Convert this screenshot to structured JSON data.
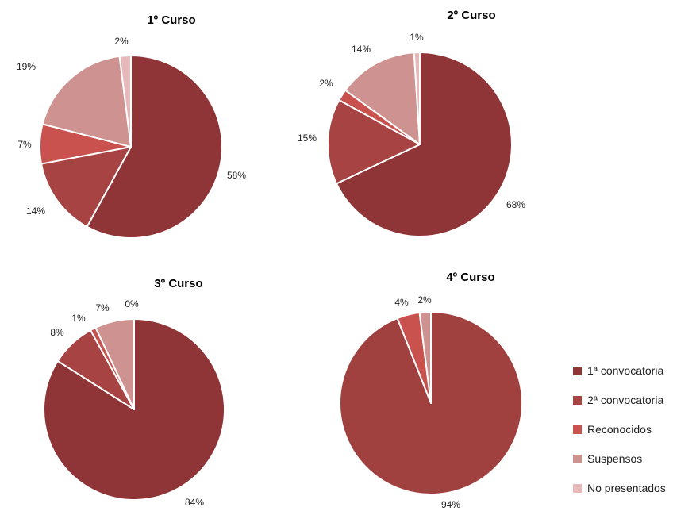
{
  "colors": {
    "slice": [
      "#8F3537",
      "#A84343",
      "#C9524F",
      "#CE9391",
      "#E7B9BA"
    ],
    "slice_4": "#A0403F"
  },
  "chart_data": [
    {
      "type": "pie",
      "title": "1º Curso",
      "categories": [
        "1ª convocatoria",
        "2ª convocatoria",
        "Reconocidos",
        "Suspensos",
        "No presentados"
      ],
      "values": [
        58,
        14,
        7,
        19,
        2
      ],
      "labels": [
        "58%",
        "14%",
        "7%",
        "19%",
        "2%"
      ]
    },
    {
      "type": "pie",
      "title": "2º Curso",
      "categories": [
        "1ª convocatoria",
        "2ª convocatoria",
        "Reconocidos",
        "Suspensos",
        "No presentados"
      ],
      "values": [
        68,
        15,
        2,
        14,
        1
      ],
      "labels": [
        "68%",
        "15%",
        "2%",
        "14%",
        "1%"
      ]
    },
    {
      "type": "pie",
      "title": "3º Curso",
      "categories": [
        "1ª convocatoria",
        "2ª convocatoria",
        "Reconocidos",
        "Suspensos",
        "No presentados"
      ],
      "values": [
        84,
        8,
        1,
        7,
        0
      ],
      "labels": [
        "84%",
        "8%",
        "1%",
        "7%",
        "0%"
      ]
    },
    {
      "type": "pie",
      "title": "4º Curso",
      "categories": [
        "1ª convocatoria",
        "Reconocidos",
        "Suspensos"
      ],
      "values": [
        94,
        4,
        2
      ],
      "labels": [
        "94%",
        "4%",
        "2%"
      ]
    }
  ],
  "legend": {
    "position": "bottom-right",
    "items": [
      "1ª convocatoria",
      "2ª convocatoria",
      "Reconocidos",
      "Suspensos",
      "No presentados"
    ]
  }
}
